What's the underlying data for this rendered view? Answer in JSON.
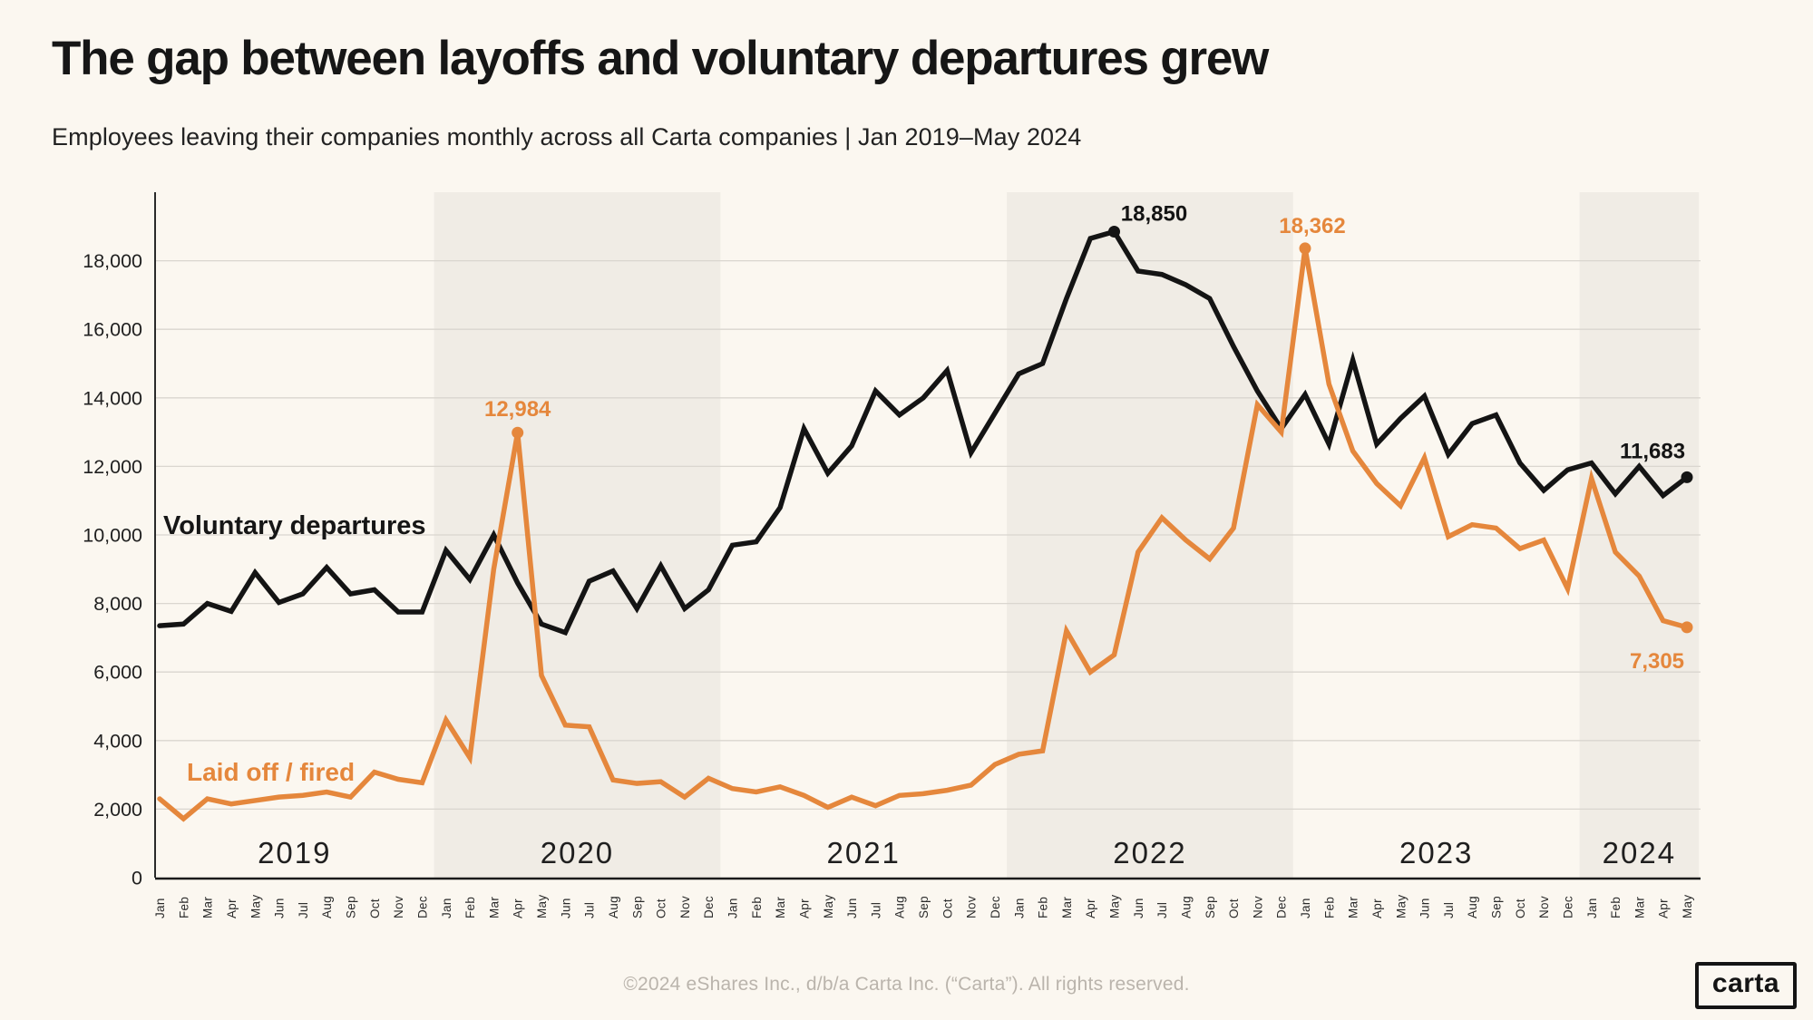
{
  "chart_data": {
    "type": "line",
    "title": "The gap between layoffs and voluntary departures grew",
    "subtitle": "Employees leaving their companies monthly across all Carta companies | Jan 2019–May 2024",
    "grid": true,
    "legend_position": "inline-labels",
    "ylim": [
      0,
      20000
    ],
    "yticks": [
      {
        "value": 0,
        "label": "0"
      },
      {
        "value": 2000,
        "label": "2,000"
      },
      {
        "value": 4000,
        "label": "4,000"
      },
      {
        "value": 6000,
        "label": "6,000"
      },
      {
        "value": 8000,
        "label": "8,000"
      },
      {
        "value": 10000,
        "label": "10,000"
      },
      {
        "value": 12000,
        "label": "12,000"
      },
      {
        "value": 14000,
        "label": "14,000"
      },
      {
        "value": 16000,
        "label": "16,000"
      },
      {
        "value": 18000,
        "label": "18,000"
      }
    ],
    "months": [
      "Jan",
      "Feb",
      "Mar",
      "Apr",
      "May",
      "Jun",
      "Jul",
      "Aug",
      "Sep",
      "Oct",
      "Nov",
      "Dec",
      "Jan",
      "Feb",
      "Mar",
      "Apr",
      "May",
      "Jun",
      "Jul",
      "Aug",
      "Sep",
      "Oct",
      "Nov",
      "Dec",
      "Jan",
      "Feb",
      "Mar",
      "Apr",
      "May",
      "Jun",
      "Jul",
      "Aug",
      "Sep",
      "Oct",
      "Nov",
      "Dec",
      "Jan",
      "Feb",
      "Mar",
      "Apr",
      "May",
      "Jun",
      "Jul",
      "Aug",
      "Sep",
      "Oct",
      "Nov",
      "Dec",
      "Jan",
      "Feb",
      "Mar",
      "Apr",
      "May",
      "Jun",
      "Jul",
      "Aug",
      "Sep",
      "Oct",
      "Nov",
      "Dec",
      "Jan",
      "Feb",
      "Mar",
      "Apr",
      "May"
    ],
    "years": [
      {
        "label": "2019",
        "start": 0,
        "end": 11,
        "shaded": false
      },
      {
        "label": "2020",
        "start": 12,
        "end": 23,
        "shaded": true
      },
      {
        "label": "2021",
        "start": 24,
        "end": 35,
        "shaded": false
      },
      {
        "label": "2022",
        "start": 36,
        "end": 47,
        "shaded": true
      },
      {
        "label": "2023",
        "start": 48,
        "end": 59,
        "shaded": false
      },
      {
        "label": "2024",
        "start": 60,
        "end": 64,
        "shaded": true
      }
    ],
    "series": [
      {
        "name": "Voluntary departures",
        "color": "#141414",
        "values": [
          7350,
          7400,
          8000,
          7770,
          8900,
          8030,
          8280,
          9050,
          8280,
          8400,
          7750,
          7750,
          9550,
          8700,
          10000,
          8600,
          7400,
          7150,
          8650,
          8950,
          7850,
          9100,
          7850,
          8400,
          9700,
          9800,
          10800,
          13100,
          11800,
          12600,
          14200,
          13500,
          14000,
          14800,
          12400,
          13550,
          14700,
          15000,
          16900,
          18650,
          18850,
          17700,
          17600,
          17300,
          16900,
          15500,
          14200,
          13100,
          14100,
          12650,
          15100,
          12650,
          13400,
          14050,
          12350,
          13250,
          13500,
          12100,
          11300,
          11900,
          12100,
          11200,
          12000,
          11150,
          11683
        ]
      },
      {
        "name": "Laid off / fired",
        "color": "#E5873C",
        "values": [
          2300,
          1720,
          2300,
          2150,
          2250,
          2350,
          2400,
          2500,
          2350,
          3080,
          2870,
          2770,
          4600,
          3500,
          9000,
          12984,
          5900,
          4450,
          4400,
          2850,
          2750,
          2800,
          2350,
          2900,
          2600,
          2500,
          2650,
          2400,
          2050,
          2350,
          2100,
          2400,
          2450,
          2550,
          2700,
          3300,
          3600,
          3700,
          7200,
          6000,
          6500,
          9500,
          10500,
          9850,
          9300,
          10200,
          13800,
          13000,
          18362,
          14400,
          12450,
          11500,
          10850,
          12250,
          9950,
          10300,
          10200,
          9600,
          9850,
          8430,
          11650,
          9500,
          8800,
          7500,
          7305
        ]
      }
    ],
    "annotations": [
      {
        "series": 1,
        "index": 15,
        "label": "12,984",
        "offset": [
          0,
          -18
        ]
      },
      {
        "series": 0,
        "index": 40,
        "label": "18,850",
        "offset": [
          44,
          -12
        ]
      },
      {
        "series": 1,
        "index": 48,
        "label": "18,362",
        "offset": [
          8,
          -17
        ]
      },
      {
        "series": 0,
        "index": 64,
        "label": "11,683",
        "offset": [
          -38,
          -21
        ]
      },
      {
        "series": 1,
        "index": 64,
        "label": "7,305",
        "offset": [
          -33,
          45
        ]
      }
    ],
    "colors": {
      "background": "#FBF7F0",
      "band": "#F0ECE5",
      "gridline": "#DAD6CF",
      "axis": "#1A1A1A",
      "tick_text": "#1F1F1F",
      "year_text": "#1F1F1F",
      "footer_text": "#BAB4AC"
    }
  },
  "footer": {
    "copyright": "©2024 eShares Inc., d/b/a Carta Inc. (“Carta”). All rights reserved.",
    "logo_text": "carta"
  }
}
